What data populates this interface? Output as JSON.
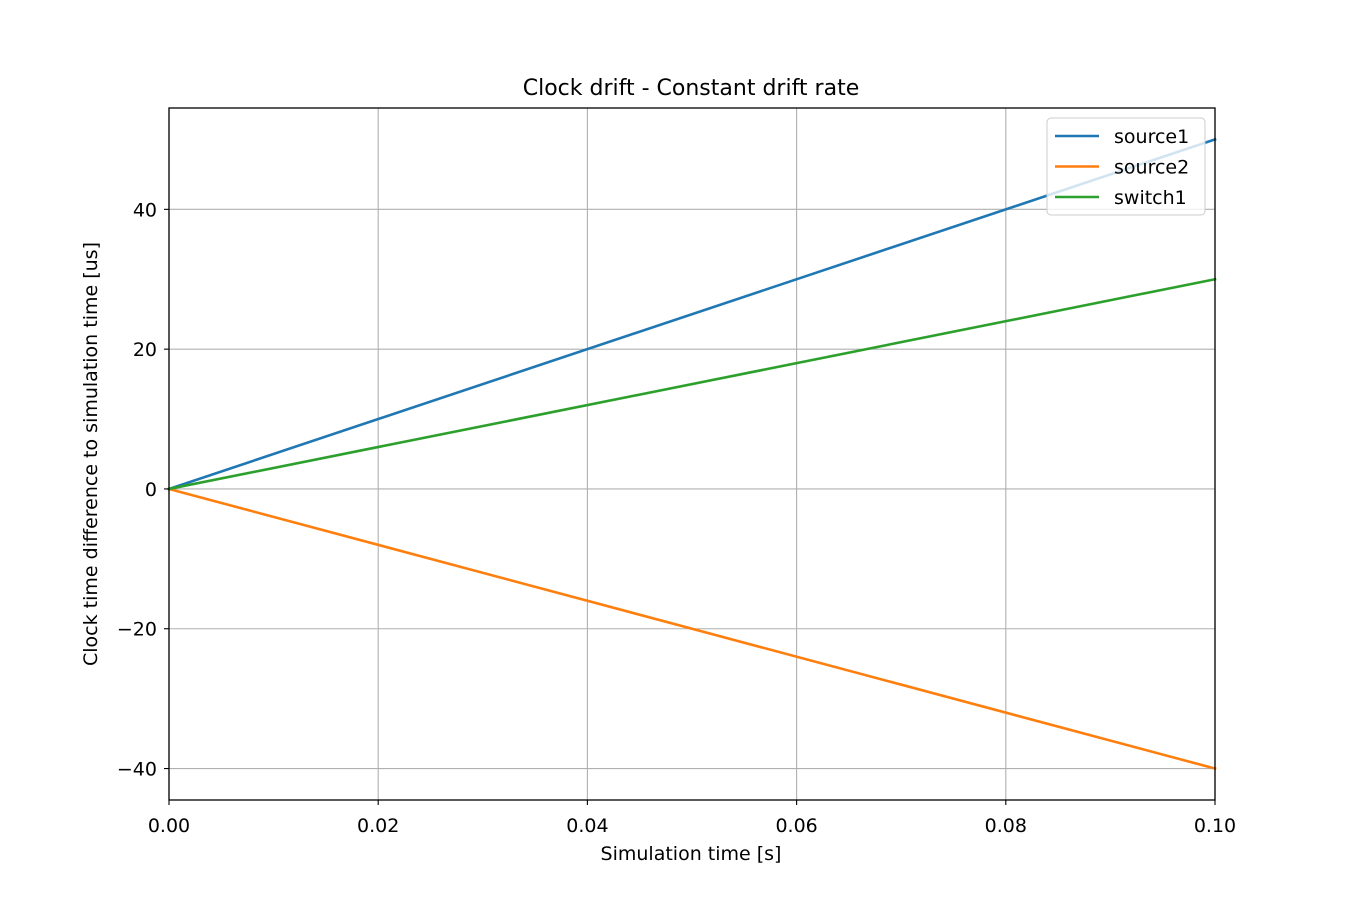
{
  "chart_data": {
    "type": "line",
    "title": "Clock drift - Constant drift rate",
    "xlabel": "Simulation time [s]",
    "ylabel": "Clock time difference to simulation time [us]",
    "xlim": [
      0.0,
      0.1
    ],
    "ylim": [
      -44.5,
      54.5
    ],
    "xticks": [
      0.0,
      0.02,
      0.04,
      0.06,
      0.08,
      0.1
    ],
    "xtick_labels": [
      "0.00",
      "0.02",
      "0.04",
      "0.06",
      "0.08",
      "0.10"
    ],
    "yticks": [
      -40,
      -20,
      0,
      20,
      40
    ],
    "ytick_labels": [
      "−40",
      "−20",
      "0",
      "20",
      "40"
    ],
    "grid": true,
    "legend_position": "top-right",
    "series": [
      {
        "name": "source1",
        "color": "#1f77b4",
        "x": [
          0.0,
          0.1
        ],
        "y": [
          0,
          50
        ]
      },
      {
        "name": "source2",
        "color": "#ff7f0e",
        "x": [
          0.0,
          0.1
        ],
        "y": [
          0,
          -40
        ]
      },
      {
        "name": "switch1",
        "color": "#2ca02c",
        "x": [
          0.0,
          0.1
        ],
        "y": [
          0,
          30
        ]
      }
    ]
  }
}
